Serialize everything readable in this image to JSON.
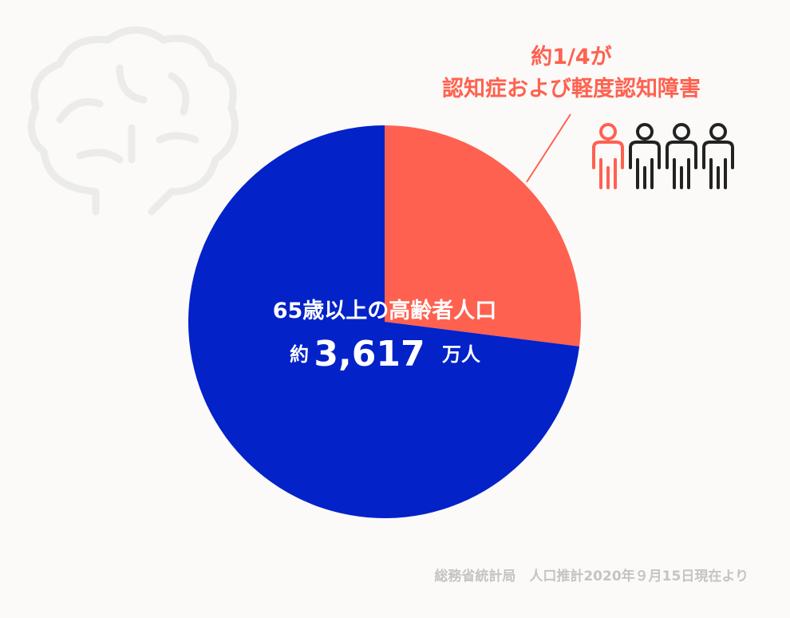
{
  "chart_data": {
    "type": "pie",
    "values": [
      27,
      73
    ],
    "colors": [
      "#ff6150",
      "#0322c8"
    ],
    "center_label": {
      "title": "65歳以上の高齢者人口",
      "prefix": "約",
      "amount": "3,617",
      "unit": "万人"
    },
    "annotation": {
      "line1": "約1/4が",
      "line2": "認知症および軽度認知障害"
    },
    "source": "総務省統計局　人口推計2020年９月15日現在より"
  }
}
